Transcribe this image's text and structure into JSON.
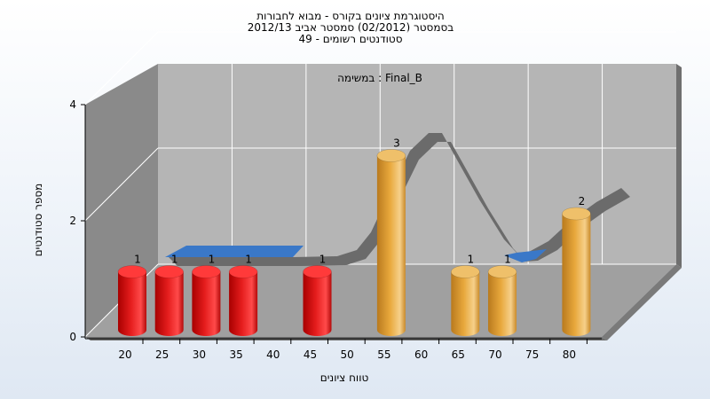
{
  "chart_data": {
    "type": "bar",
    "title_lines": [
      "היסטוגרמת ציונים בקורס - מבוא לחבורות",
      "בסמסטר  (02/2012)  סמסטר אביב 2012/13",
      "סטודנטים רשומים - 49"
    ],
    "task_label": "במשימה : Final_B",
    "xlabel": "טווח ציונים",
    "ylabel": "מספר סטודנטים",
    "categories": [
      "20",
      "25",
      "30",
      "35",
      "40",
      "45",
      "50",
      "55",
      "60",
      "65",
      "70",
      "75",
      "80"
    ],
    "yticks": [
      "0",
      "2",
      "4"
    ],
    "ylim": [
      0,
      4
    ],
    "bars": [
      {
        "x": "20",
        "value": 1,
        "label": "1",
        "color": "red"
      },
      {
        "x": "25",
        "value": 1,
        "label": "1",
        "color": "red"
      },
      {
        "x": "30",
        "value": 1,
        "label": "1",
        "color": "red"
      },
      {
        "x": "35",
        "value": 1,
        "label": "1",
        "color": "red"
      },
      {
        "x": "45",
        "value": 1,
        "label": "1",
        "color": "red"
      },
      {
        "x": "55",
        "value": 3,
        "label": "3",
        "color": "orange"
      },
      {
        "x": "65",
        "value": 1,
        "label": "1",
        "color": "orange"
      },
      {
        "x": "70",
        "value": 1,
        "label": "1",
        "color": "orange"
      },
      {
        "x": "80",
        "value": 2,
        "label": "2",
        "color": "orange"
      }
    ],
    "curve_note": "ribbon trend curve drawn behind bars (gray, blue where it dips behind the floor)",
    "colors": {
      "red": "#e51d1d",
      "orange": "#e8a83c",
      "ribbon": "#6b6b6b",
      "ribbon_low": "#3a78c8",
      "wall": "#b5b5b5",
      "side_wall": "#8a8a8a",
      "floor": "#a0a0a0"
    },
    "grid": true
  }
}
